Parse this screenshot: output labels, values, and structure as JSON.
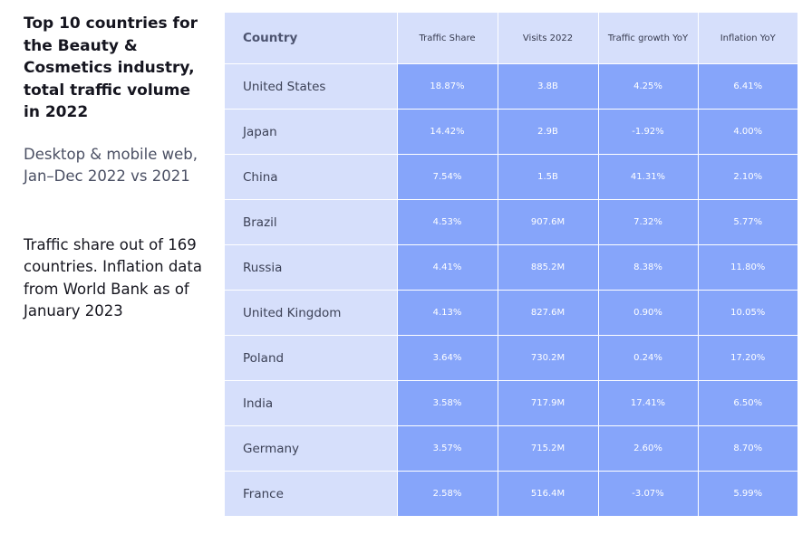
{
  "sidebar": {
    "title": "Top 10 countries for the Beauty & Cosmetics industry, total traffic volume in 2022",
    "subtitle": "Desktop & mobile web, Jan–Dec 2022 vs 2021",
    "note": "Traffic share out of 169 countries. Inflation data from World Bank as of January 2023"
  },
  "chart_data": {
    "type": "table",
    "title": "Top 10 countries for the Beauty & Cosmetics industry, total traffic volume in 2022",
    "columns": [
      "Country",
      "Traffic Share",
      "Visits 2022",
      "Traffic growth YoY",
      "Inflation YoY"
    ],
    "rows": [
      [
        "United States",
        "18.87%",
        "3.8B",
        "4.25%",
        "6.41%"
      ],
      [
        "Japan",
        "14.42%",
        "2.9B",
        "-1.92%",
        "4.00%"
      ],
      [
        "China",
        "7.54%",
        "1.5B",
        "41.31%",
        "2.10%"
      ],
      [
        "Brazil",
        "4.53%",
        "907.6M",
        "7.32%",
        "5.77%"
      ],
      [
        "Russia",
        "4.41%",
        "885.2M",
        "8.38%",
        "11.80%"
      ],
      [
        "United Kingdom",
        "4.13%",
        "827.6M",
        "0.90%",
        "10.05%"
      ],
      [
        "Poland",
        "3.64%",
        "730.2M",
        "0.24%",
        "17.20%"
      ],
      [
        "India",
        "3.58%",
        "717.9M",
        "17.41%",
        "6.50%"
      ],
      [
        "Germany",
        "3.57%",
        "715.2M",
        "2.60%",
        "8.70%"
      ],
      [
        "France",
        "2.58%",
        "516.4M",
        "-3.07%",
        "5.99%"
      ]
    ]
  }
}
